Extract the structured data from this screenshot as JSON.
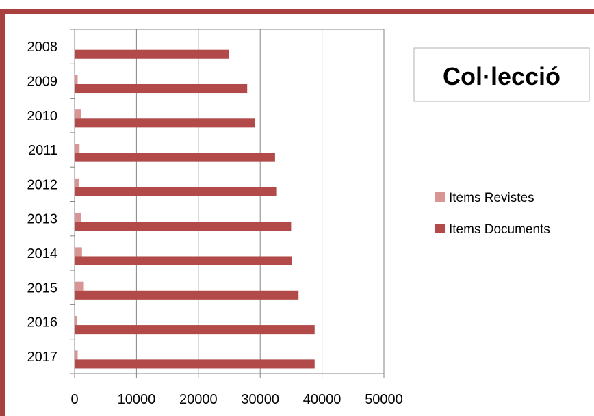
{
  "chart_data": {
    "type": "bar",
    "orientation": "horizontal",
    "title": "Col·lecció",
    "categories": [
      "2008",
      "2009",
      "2010",
      "2011",
      "2012",
      "2013",
      "2014",
      "2015",
      "2016",
      "2017"
    ],
    "series": [
      {
        "name": "Items Revistes",
        "color": "#d99594",
        "values": [
          0,
          500,
          1000,
          800,
          700,
          1000,
          1200,
          1500,
          400,
          500
        ]
      },
      {
        "name": "Items Documents",
        "color": "#b24a4a",
        "values": [
          25000,
          27900,
          29200,
          32400,
          32700,
          35000,
          35100,
          36200,
          38800,
          38800
        ]
      }
    ],
    "xlim": [
      0,
      50000
    ],
    "xticks": [
      0,
      10000,
      20000,
      30000,
      40000,
      50000
    ],
    "grid": true,
    "legend_position": "right",
    "frame_color": "#a94040"
  }
}
